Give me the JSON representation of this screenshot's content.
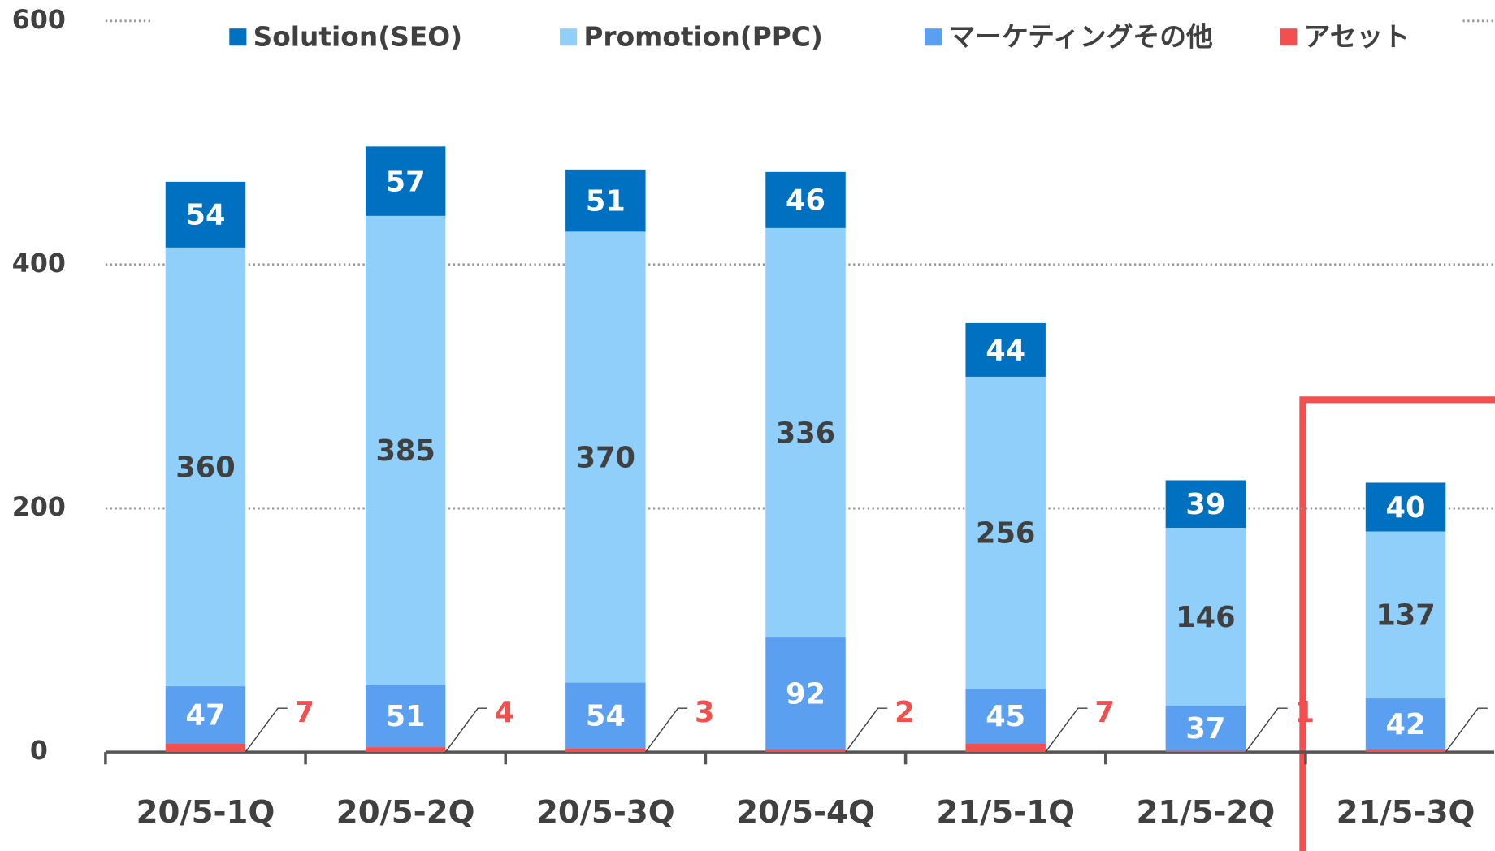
{
  "chart_data": {
    "type": "stacked_bar",
    "categories": [
      "20/5-1Q",
      "20/5-2Q",
      "20/5-3Q",
      "20/5-4Q",
      "21/5-1Q",
      "21/5-2Q",
      "21/5-3Q"
    ],
    "series": [
      {
        "name": "アセット",
        "color": "#f24f4f",
        "values": [
          7,
          4,
          3,
          2,
          7,
          1,
          2
        ]
      },
      {
        "name": "マーケティングその他",
        "color": "#5b9ff0",
        "values": [
          47,
          51,
          54,
          92,
          45,
          37,
          42
        ]
      },
      {
        "name": "Promotion(PPC)",
        "color": "#91cffb",
        "values": [
          360,
          385,
          370,
          336,
          256,
          146,
          137
        ]
      },
      {
        "name": "Solution(SEO)",
        "color": "#0070c0",
        "values": [
          54,
          57,
          51,
          46,
          44,
          39,
          40
        ]
      }
    ],
    "legend_order": [
      3,
      2,
      1,
      0
    ],
    "ylim": [
      0,
      600
    ],
    "yticks": [
      0,
      200,
      400,
      600
    ],
    "grid": true
  }
}
